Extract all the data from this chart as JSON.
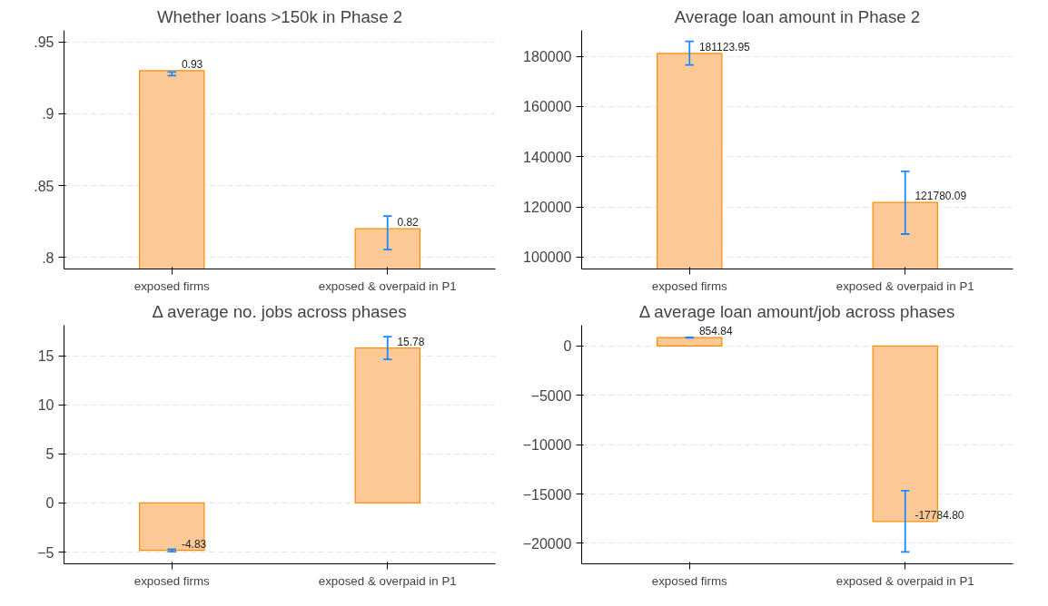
{
  "chart_data": [
    {
      "type": "bar",
      "title": "Whether loans >150k in Phase 2",
      "categories": [
        "exposed firms",
        "exposed & overpaid in P1"
      ],
      "values": [
        0.93,
        0.82
      ],
      "value_labels": [
        "0.93",
        "0.82"
      ],
      "errors": [
        [
          0.9265,
          0.929
        ],
        [
          0.8055,
          0.8288
        ]
      ],
      "color": "#fdc997",
      "ylim": [
        0.792,
        0.958
      ],
      "yticks": [
        {
          "value": 0.8,
          "label": ".8"
        },
        {
          "value": 0.85,
          "label": ".85"
        },
        {
          "value": 0.9,
          "label": ".9"
        },
        {
          "value": 0.95,
          "label": ".95"
        }
      ],
      "grid": "y"
    },
    {
      "type": "bar",
      "title": "Average loan amount in Phase 2",
      "categories": [
        "exposed firms",
        "exposed & overpaid in P1"
      ],
      "values": [
        181123.95,
        121780.09
      ],
      "value_labels": [
        "181123.95",
        "121780.09"
      ],
      "errors": [
        [
          176500,
          185900
        ],
        [
          109200,
          134200
        ]
      ],
      "color": "#fdc997",
      "ylim": [
        95300,
        190300
      ],
      "yticks": [
        100000,
        120000,
        140000,
        160000,
        180000
      ],
      "grid": "y"
    },
    {
      "type": "bar",
      "title": "Δ average no. jobs across phases",
      "categories": [
        "exposed firms",
        "exposed & overpaid in P1"
      ],
      "values": [
        -4.83,
        15.78
      ],
      "value_labels": [
        "-4.83",
        "15.78"
      ],
      "errors": [
        [
          -4.96,
          -4.72
        ],
        [
          14.63,
          16.94
        ]
      ],
      "color": "#fdc997",
      "ylim": [
        -6.2,
        18.1
      ],
      "yticks": [
        -5,
        0,
        5,
        10,
        15
      ],
      "grid": "y"
    },
    {
      "type": "bar",
      "title": "Δ average loan amount/job across phases",
      "categories": [
        "exposed firms",
        "exposed & overpaid in P1"
      ],
      "values": [
        854.84,
        -17784.8
      ],
      "value_labels": [
        "854.84",
        "-17784.80"
      ],
      "errors": [
        [
          830,
          880
        ],
        [
          -20870,
          -14660
        ]
      ],
      "color": "#fdc997",
      "ylim": [
        -22070,
        2100
      ],
      "yticks": [
        -20000,
        -15000,
        -10000,
        -5000,
        0
      ],
      "grid": "y"
    }
  ]
}
